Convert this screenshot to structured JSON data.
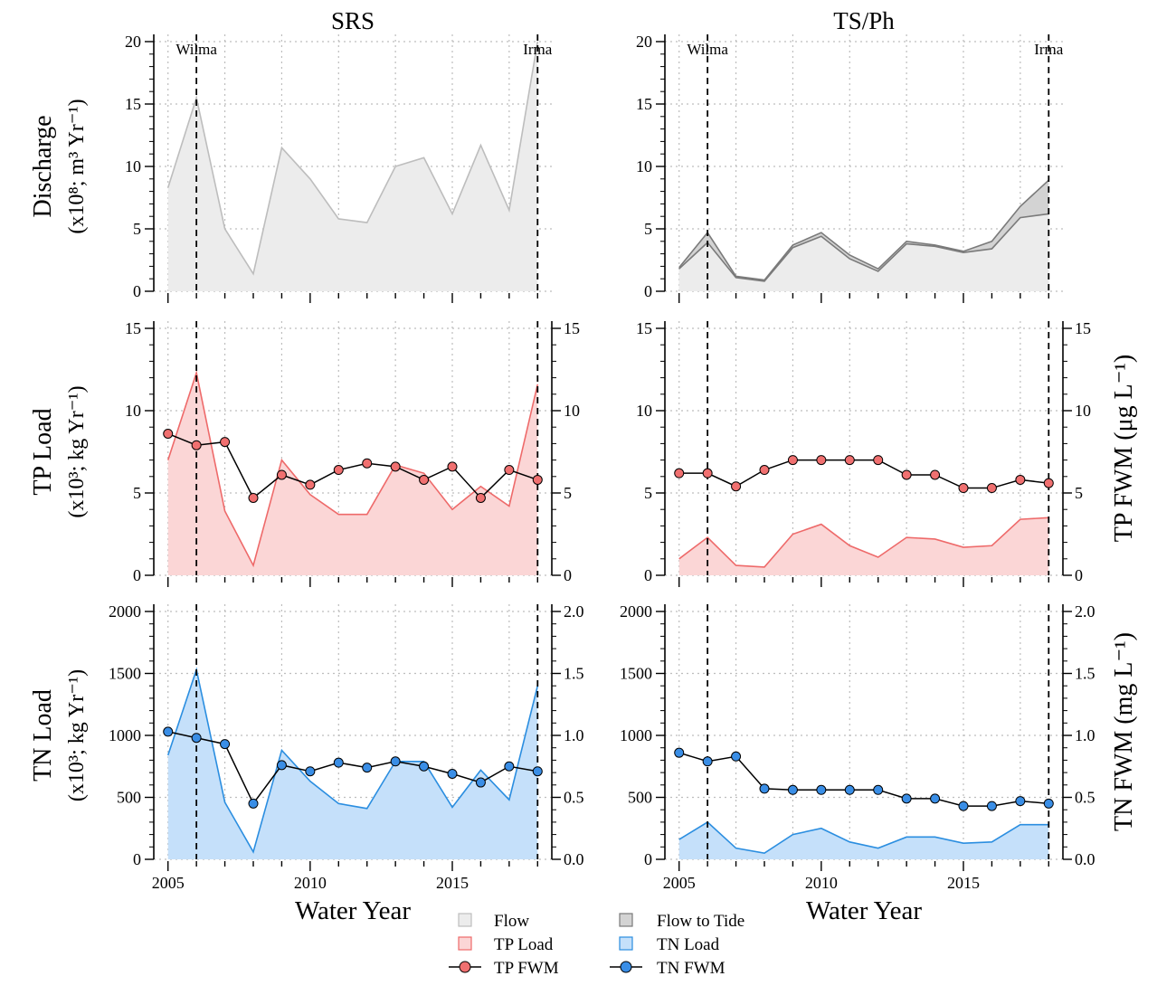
{
  "page": {
    "column_titles": [
      "SRS",
      "TS/Ph"
    ],
    "x_axis_title": "Water Year",
    "y_titles_left": {
      "discharge": [
        "Discharge",
        "(x10⁸; m³ Yr⁻¹)"
      ],
      "tp": [
        "TP Load",
        "(x10³; kg Yr⁻¹)"
      ],
      "tn": [
        "TN Load",
        "(x10³; kg Yr⁻¹)"
      ]
    },
    "y_titles_right": {
      "tp": "TP FWM (μg L⁻¹)",
      "tn": "TN FWM (mg L⁻¹)"
    },
    "events": [
      {
        "label": "Wilma",
        "year": 2006
      },
      {
        "label": "Irma",
        "year": 2018
      }
    ],
    "legend": {
      "flow": "Flow",
      "flow_to_tide": "Flow to Tide",
      "tp_load": "TP Load",
      "tn_load": "TN Load",
      "tp_fwm": "TP FWM",
      "tn_fwm": "TN FWM"
    },
    "colors": {
      "flow_fill": "#ececec",
      "flow_line": "#bdbdbd",
      "tide_fill": "#d3d3d3",
      "tide_line": "#7a7a7a",
      "tp_fill": "#fbd6d6",
      "tp_line": "#ee6a6a",
      "tp_point": "#f07070",
      "tn_fill": "#c5e0fa",
      "tn_line": "#2b8ee0",
      "tn_point": "#3a8ee6",
      "grid": "#bdbdbd"
    }
  },
  "chart_data": [
    {
      "id": "srs_discharge",
      "type": "area",
      "panel_title": "SRS",
      "ylim": [
        0,
        20
      ],
      "yticks": [
        0,
        5,
        10,
        15,
        20
      ],
      "x": [
        2005,
        2006,
        2007,
        2008,
        2009,
        2010,
        2011,
        2012,
        2013,
        2014,
        2015,
        2016,
        2017,
        2018
      ],
      "xlim": [
        2004.5,
        2018.5
      ],
      "xticks": [
        2005,
        2010,
        2015
      ],
      "series": [
        {
          "name": "Flow",
          "values": [
            8.3,
            15.5,
            5.0,
            1.4,
            11.5,
            9.0,
            5.8,
            5.5,
            10.0,
            10.7,
            6.2,
            11.7,
            6.5,
            20.0
          ]
        }
      ]
    },
    {
      "id": "tsph_discharge",
      "type": "area",
      "panel_title": "TS/Ph",
      "ylim": [
        0,
        20
      ],
      "yticks": [
        0,
        5,
        10,
        15,
        20
      ],
      "x": [
        2005,
        2006,
        2007,
        2008,
        2009,
        2010,
        2011,
        2012,
        2013,
        2014,
        2015,
        2016,
        2017,
        2018
      ],
      "xlim": [
        2004.5,
        2018.5
      ],
      "xticks": [
        2005,
        2010,
        2015
      ],
      "series": [
        {
          "name": "Flow",
          "values": [
            1.8,
            3.9,
            1.1,
            0.8,
            3.5,
            4.4,
            2.6,
            1.6,
            3.8,
            3.6,
            3.1,
            3.4,
            5.9,
            6.2
          ]
        },
        {
          "name": "Flow to Tide",
          "values": [
            1.9,
            4.7,
            1.2,
            0.9,
            3.7,
            4.7,
            2.9,
            1.8,
            4.0,
            3.7,
            3.2,
            4.0,
            6.8,
            8.9
          ]
        }
      ]
    },
    {
      "id": "srs_tp",
      "type": "area",
      "panel_title": "",
      "ylim": [
        0,
        15
      ],
      "yticks": [
        0,
        5,
        10,
        15
      ],
      "y2lim": [
        0,
        15
      ],
      "y2ticks": [
        0,
        5,
        10,
        15
      ],
      "x": [
        2005,
        2006,
        2007,
        2008,
        2009,
        2010,
        2011,
        2012,
        2013,
        2014,
        2015,
        2016,
        2017,
        2018
      ],
      "xlim": [
        2004.5,
        2018.5
      ],
      "xticks": [
        2005,
        2010,
        2015
      ],
      "series": [
        {
          "name": "TP Load",
          "values": [
            7.0,
            12.3,
            3.9,
            0.6,
            7.0,
            4.9,
            3.7,
            3.7,
            6.7,
            6.2,
            4.0,
            5.4,
            4.2,
            11.6
          ]
        },
        {
          "name": "TP FWM",
          "axis": "right",
          "values": [
            8.6,
            7.9,
            8.1,
            4.7,
            6.1,
            5.5,
            6.4,
            6.8,
            6.6,
            5.8,
            6.6,
            4.7,
            6.4,
            5.8
          ]
        }
      ]
    },
    {
      "id": "tsph_tp",
      "type": "area",
      "panel_title": "",
      "ylim": [
        0,
        15
      ],
      "yticks": [
        0,
        5,
        10,
        15
      ],
      "y2lim": [
        0,
        15
      ],
      "y2ticks": [
        0,
        5,
        10,
        15
      ],
      "x": [
        2005,
        2006,
        2007,
        2008,
        2009,
        2010,
        2011,
        2012,
        2013,
        2014,
        2015,
        2016,
        2017,
        2018
      ],
      "xlim": [
        2004.5,
        2018.5
      ],
      "xticks": [
        2005,
        2010,
        2015
      ],
      "series": [
        {
          "name": "TP Load",
          "values": [
            1.0,
            2.3,
            0.6,
            0.5,
            2.5,
            3.1,
            1.8,
            1.1,
            2.3,
            2.2,
            1.7,
            1.8,
            3.4,
            3.5
          ]
        },
        {
          "name": "TP FWM",
          "axis": "right",
          "values": [
            6.2,
            6.2,
            5.4,
            6.4,
            7.0,
            7.0,
            7.0,
            7.0,
            6.1,
            6.1,
            5.3,
            5.3,
            5.8,
            5.6
          ]
        }
      ]
    },
    {
      "id": "srs_tn",
      "type": "area",
      "panel_title": "",
      "ylim": [
        0,
        2000
      ],
      "yticks": [
        0,
        500,
        1000,
        1500,
        2000
      ],
      "y2lim": [
        0,
        2.0
      ],
      "y2ticks": [
        "0.0",
        "0.5",
        "1.0",
        "1.5",
        "2.0"
      ],
      "x": [
        2005,
        2006,
        2007,
        2008,
        2009,
        2010,
        2011,
        2012,
        2013,
        2014,
        2015,
        2016,
        2017,
        2018
      ],
      "xlim": [
        2004.5,
        2018.5
      ],
      "xticks": [
        2005,
        2010,
        2015
      ],
      "series": [
        {
          "name": "TN Load",
          "values": [
            840,
            1530,
            460,
            60,
            880,
            630,
            450,
            410,
            790,
            790,
            420,
            720,
            480,
            1400
          ]
        },
        {
          "name": "TN FWM",
          "axis": "right",
          "values": [
            1.03,
            0.98,
            0.93,
            0.45,
            0.76,
            0.71,
            0.78,
            0.74,
            0.79,
            0.75,
            0.69,
            0.62,
            0.75,
            0.71
          ]
        }
      ]
    },
    {
      "id": "tsph_tn",
      "type": "area",
      "panel_title": "",
      "ylim": [
        0,
        2000
      ],
      "yticks": [
        0,
        500,
        1000,
        1500,
        2000
      ],
      "y2lim": [
        0,
        2.0
      ],
      "y2ticks": [
        "0.0",
        "0.5",
        "1.0",
        "1.5",
        "2.0"
      ],
      "x": [
        2005,
        2006,
        2007,
        2008,
        2009,
        2010,
        2011,
        2012,
        2013,
        2014,
        2015,
        2016,
        2017,
        2018
      ],
      "xlim": [
        2004.5,
        2018.5
      ],
      "xticks": [
        2005,
        2010,
        2015
      ],
      "series": [
        {
          "name": "TN Load",
          "values": [
            160,
            300,
            90,
            50,
            200,
            250,
            140,
            90,
            180,
            180,
            130,
            140,
            280,
            280
          ]
        },
        {
          "name": "TN FWM",
          "axis": "right",
          "values": [
            0.86,
            0.79,
            0.83,
            0.57,
            0.56,
            0.56,
            0.56,
            0.56,
            0.49,
            0.49,
            0.43,
            0.43,
            0.47,
            0.45
          ]
        }
      ]
    }
  ]
}
